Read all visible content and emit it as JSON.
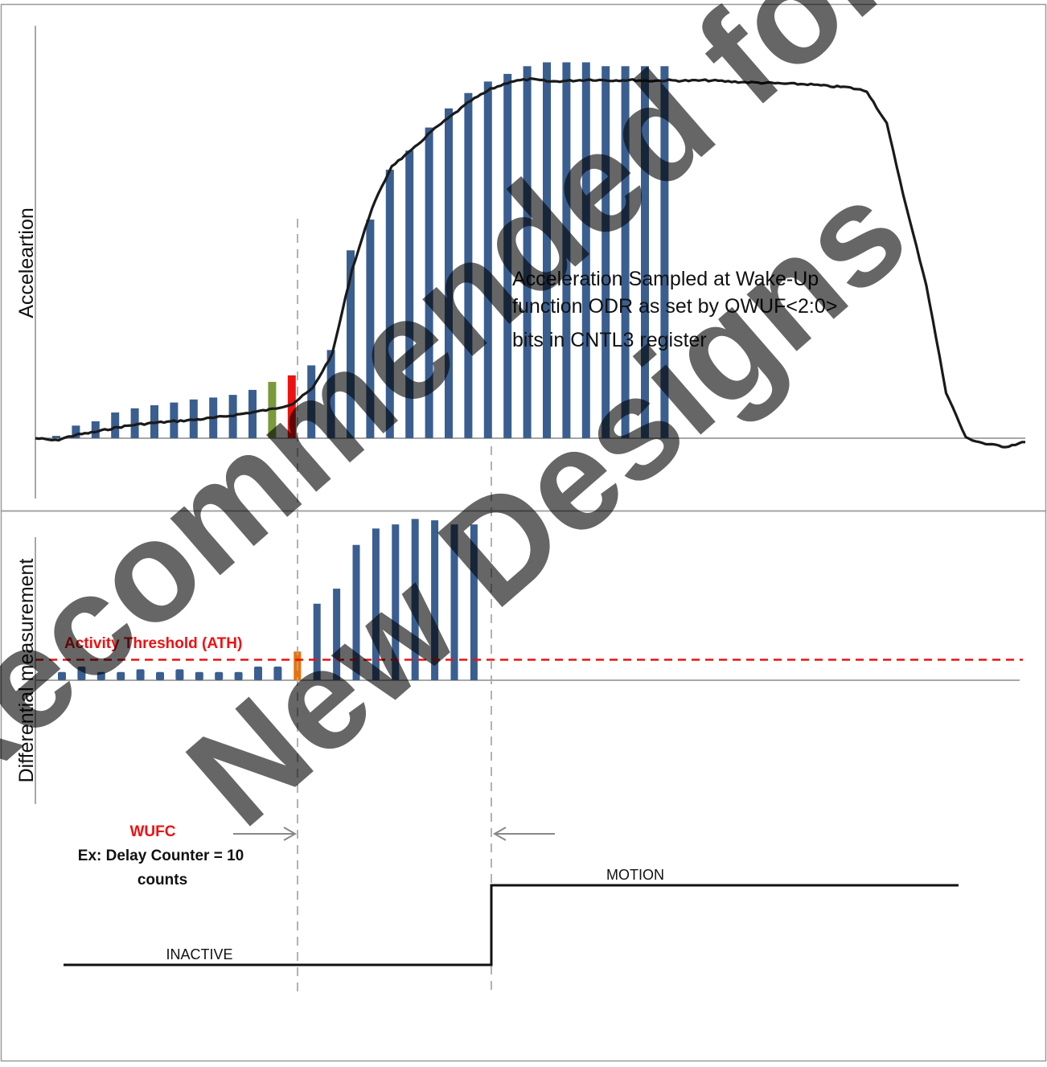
{
  "colors": {
    "bar": "#3a5e8f",
    "pre_trigger_bar": "#7a9a3c",
    "trigger_bar": "#ee1111",
    "diff_trigger_bar": "#e8720c",
    "threshold": "#ee1111",
    "signal": "#1a1a1a",
    "guide": "#aaaaaa",
    "watermark": "#555555"
  },
  "chart_data": [
    {
      "type": "line",
      "ylabel": "Acceleartion",
      "annotation": [
        "Acceleration Sampled at Wake-Up",
        "function ODR as set by OWUF<2:0>",
        "bits in CNTL3 register"
      ],
      "line_y": [
        0.0,
        -0.6,
        0.8,
        1.6,
        2.7,
        3.5,
        4.0,
        4.4,
        4.8,
        5.3,
        6.0,
        6.8,
        7.6,
        9.0,
        13.0,
        22.0,
        44.0,
        60.0,
        71.0,
        75.0,
        80.0,
        84.0,
        88.0,
        91.0,
        93.0,
        93.6,
        93.0,
        93.2,
        93.5,
        93.3,
        93.4,
        93.2,
        93.3,
        93.2,
        93.3,
        93.0,
        92.8,
        92.6,
        92.4,
        92.3,
        91.8,
        91.5,
        90.5,
        82.0,
        60.0,
        40.0,
        12.0,
        0.1,
        -1.5,
        -2.2,
        -1.0
      ],
      "series": [
        {
          "values": [
            0.6,
            3.3,
            4.4,
            6.7,
            7.8,
            8.6,
            9.3,
            10.1,
            10.6,
            11.3,
            12.6,
            14.7,
            16.4,
            19.0,
            23.0,
            49.0,
            57.0,
            70.0,
            75.0,
            81.0,
            86.0,
            90.0,
            93.0,
            95.0,
            97.0,
            98.0,
            98.0,
            98.0,
            97.0,
            97.0,
            97.0,
            97.0
          ]
        }
      ],
      "ylim": [
        -17,
        112
      ]
    },
    {
      "type": "bar",
      "ylabel": "Differential measurement",
      "threshold_label": "Activity Threshold (ATH)",
      "threshold": 15,
      "values": [
        6.0,
        10.0,
        6.0,
        6.0,
        8.0,
        6.0,
        8.0,
        6.0,
        6.0,
        6.0,
        10.0,
        10.0,
        21.0,
        56.0,
        67.0,
        99.0,
        111.0,
        114.0,
        118.0,
        117.0,
        114.0,
        114.0
      ],
      "ylim": [
        0,
        130
      ]
    }
  ],
  "timing": {
    "wufc_label": "WUFC",
    "wufc_desc": [
      "Ex: Delay Counter = 10",
      "counts"
    ],
    "inactive_label": "INACTIVE",
    "motion_label": "MOTION"
  },
  "watermark": [
    "Not Recommended for",
    "New Designs"
  ]
}
